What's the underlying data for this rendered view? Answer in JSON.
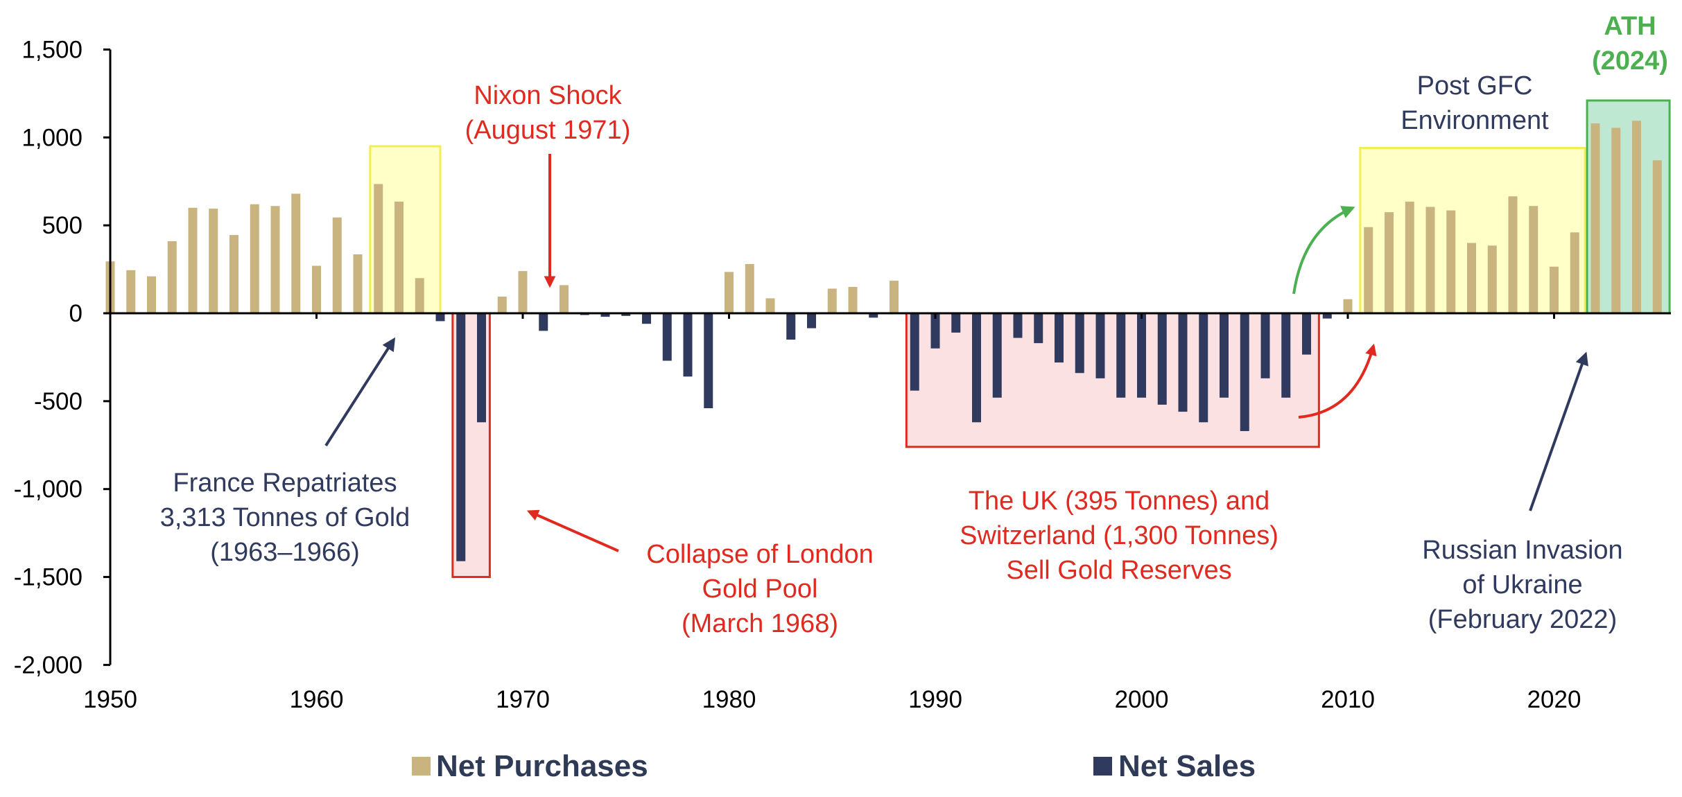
{
  "chart_data": {
    "type": "bar",
    "x": [
      1950,
      1951,
      1952,
      1953,
      1954,
      1955,
      1956,
      1957,
      1958,
      1959,
      1960,
      1961,
      1962,
      1963,
      1964,
      1965,
      1966,
      1967,
      1968,
      1969,
      1970,
      1971,
      1972,
      1973,
      1974,
      1975,
      1976,
      1977,
      1978,
      1979,
      1980,
      1981,
      1982,
      1983,
      1984,
      1985,
      1986,
      1987,
      1988,
      1989,
      1990,
      1991,
      1992,
      1993,
      1994,
      1995,
      1996,
      1997,
      1998,
      1999,
      2000,
      2001,
      2002,
      2003,
      2004,
      2005,
      2006,
      2007,
      2008,
      2009,
      2010,
      2011,
      2012,
      2013,
      2014,
      2015,
      2016,
      2017,
      2018,
      2019,
      2020,
      2021,
      2022,
      2023,
      2024,
      2025
    ],
    "values": [
      295,
      245,
      210,
      410,
      600,
      595,
      445,
      620,
      610,
      680,
      270,
      545,
      335,
      735,
      635,
      200,
      -45,
      -1410,
      -620,
      95,
      240,
      -100,
      160,
      -10,
      -20,
      -15,
      -60,
      -270,
      -360,
      -540,
      235,
      280,
      85,
      -150,
      -85,
      140,
      150,
      -25,
      185,
      -440,
      -200,
      -110,
      -620,
      -480,
      -140,
      -170,
      -280,
      -340,
      -370,
      -480,
      -480,
      -520,
      -560,
      -620,
      -480,
      -670,
      -370,
      -480,
      -235,
      -30,
      80,
      490,
      575,
      635,
      605,
      585,
      400,
      385,
      665,
      610,
      265,
      460,
      1080,
      1055,
      1095,
      870
    ],
    "series": [
      {
        "name": "Net Purchases",
        "color": "#c9b37f"
      },
      {
        "name": "Net Sales",
        "color": "#2f3a5e"
      }
    ],
    "ylim": [
      -2000,
      1500
    ],
    "yticks": [
      1500,
      1000,
      500,
      0,
      -500,
      -1000,
      -1500,
      -2000
    ],
    "ytick_labels": [
      "1,500",
      "1,000",
      "500",
      "0",
      "-500",
      "-1,000",
      "-1,500",
      "-2,000"
    ],
    "xticks": [
      1950,
      1960,
      1970,
      1980,
      1990,
      2000,
      2010,
      2020
    ],
    "xtick_labels": [
      "1950",
      "1960",
      "1970",
      "1980",
      "1990",
      "2000",
      "2010",
      "2020"
    ],
    "grid": false,
    "legend_position": "bottom",
    "colors": {
      "purchase": "#c9b37f",
      "sale": "#2f3a5e",
      "annotation_red": "#e0291f",
      "annotation_navy": "#2f3a5e",
      "annotation_green": "#4caf50",
      "highlight_yellow": "#ffffc8",
      "highlight_red": "#fbe1e1",
      "highlight_green": "#bfe8d2"
    },
    "highlights": [
      {
        "kind": "yellow",
        "years": [
          1962.6,
          1966.0
        ],
        "values": [
          950,
          0
        ]
      },
      {
        "kind": "red",
        "years": [
          1966.6,
          1968.4
        ],
        "values": [
          0,
          -1500
        ]
      },
      {
        "kind": "red",
        "years": [
          1988.6,
          2008.6
        ],
        "values": [
          0,
          -760
        ]
      },
      {
        "kind": "yellow",
        "years": [
          2010.6,
          2021.5
        ],
        "values": [
          940,
          0
        ]
      },
      {
        "kind": "green",
        "years": [
          2021.6,
          2025.6
        ],
        "values": [
          1210,
          0
        ]
      }
    ],
    "annotations": [
      {
        "id": "nixon",
        "color": "red",
        "bold": false,
        "lines": [
          "Nixon Shock",
          "(August 1971)"
        ]
      },
      {
        "id": "france",
        "color": "navy",
        "bold": false,
        "lines": [
          "France Repatriates",
          "3,313 Tonnes of Gold",
          "(1963–1966)"
        ]
      },
      {
        "id": "london",
        "color": "red",
        "bold": false,
        "lines": [
          "Collapse of London",
          "Gold Pool",
          "(March 1968)"
        ]
      },
      {
        "id": "uk",
        "color": "red",
        "bold": false,
        "lines": [
          "The UK (395 Tonnes) and",
          "Switzerland (1,300 Tonnes)",
          "Sell Gold Reserves"
        ]
      },
      {
        "id": "gfc",
        "color": "navy",
        "bold": false,
        "lines": [
          "Post GFC",
          "Environment"
        ]
      },
      {
        "id": "ath",
        "color": "green",
        "bold": true,
        "lines": [
          "ATH",
          "(2024)"
        ]
      },
      {
        "id": "russia",
        "color": "navy",
        "bold": false,
        "lines": [
          "Russian Invasion",
          "of Ukraine",
          "(February 2022)"
        ]
      }
    ]
  }
}
